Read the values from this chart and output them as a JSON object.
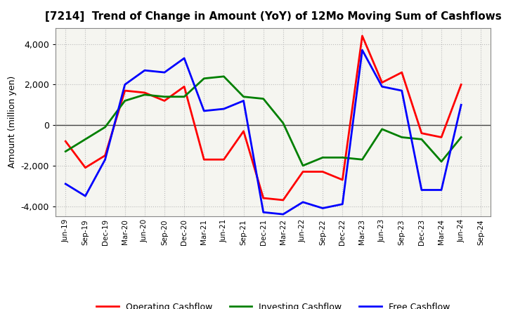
{
  "title": "[7214]  Trend of Change in Amount (YoY) of 12Mo Moving Sum of Cashflows",
  "ylabel": "Amount (million yen)",
  "x_labels": [
    "Jun-19",
    "Sep-19",
    "Dec-19",
    "Mar-20",
    "Jun-20",
    "Sep-20",
    "Dec-20",
    "Mar-21",
    "Jun-21",
    "Sep-21",
    "Dec-21",
    "Mar-22",
    "Jun-22",
    "Sep-22",
    "Dec-22",
    "Mar-23",
    "Jun-23",
    "Sep-23",
    "Dec-23",
    "Mar-24",
    "Jun-24",
    "Sep-24"
  ],
  "operating": [
    -800,
    -2100,
    -1500,
    1700,
    1600,
    1200,
    1900,
    -1700,
    -1700,
    -300,
    -3600,
    -3700,
    -2300,
    -2300,
    -2700,
    4400,
    2100,
    2600,
    -400,
    -600,
    2000,
    null
  ],
  "investing": [
    -1300,
    -700,
    -100,
    1200,
    1500,
    1400,
    1400,
    2300,
    2400,
    1400,
    1300,
    100,
    -2000,
    -1600,
    -1600,
    -1700,
    -200,
    -600,
    -700,
    -1800,
    -600,
    null
  ],
  "free": [
    -2900,
    -3500,
    -1700,
    2000,
    2700,
    2600,
    3300,
    700,
    800,
    1200,
    -4300,
    -4400,
    -3800,
    -4100,
    -3900,
    3700,
    1900,
    1700,
    -3200,
    -3200,
    1000,
    null
  ],
  "operating_color": "#ff0000",
  "investing_color": "#008000",
  "free_color": "#0000ff",
  "ylim": [
    -4500,
    4800
  ],
  "yticks": [
    -4000,
    -2000,
    0,
    2000,
    4000
  ],
  "bg_color": "#ffffff",
  "plot_bg_color": "#f5f5f0",
  "grid_color": "#bbbbbb"
}
